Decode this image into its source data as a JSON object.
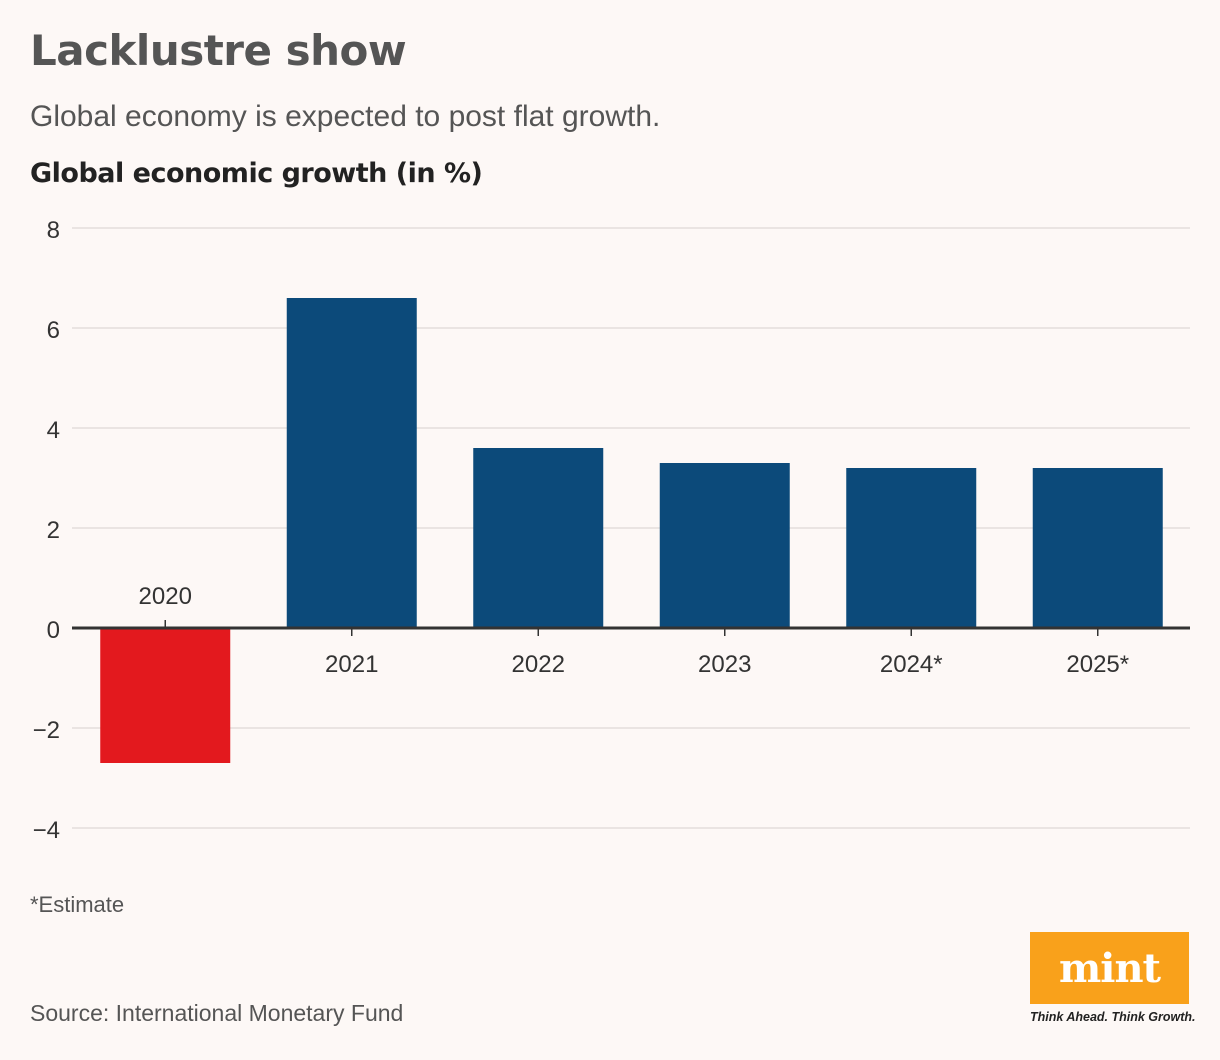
{
  "header": {
    "title": "Lacklustre show",
    "subtitle": "Global economy is expected to post flat growth."
  },
  "footer": {
    "note": "*Estimate",
    "source": "Source: International Monetary Fund"
  },
  "logo": {
    "word": "mint",
    "tagline": "Think Ahead. Think Growth.",
    "color": "#f9a11b"
  },
  "chart_data": {
    "type": "bar",
    "title": "",
    "ylabel": "Global economic growth (in %)",
    "xlabel": "",
    "categories": [
      "2020",
      "2021",
      "2022",
      "2023",
      "2024*",
      "2025*"
    ],
    "values": [
      -2.7,
      6.6,
      3.6,
      3.3,
      3.2,
      3.2
    ],
    "ylim": [
      -4,
      8
    ],
    "yticks": [
      8,
      6,
      4,
      2,
      0,
      -2,
      -4
    ],
    "ytick_labels": [
      "8",
      "6",
      "4",
      "2",
      "0",
      "−2",
      "−4"
    ],
    "grid": true,
    "colors": {
      "positive": "#0c4a7a",
      "negative": "#e3191e",
      "axis": "#333333",
      "grid": "#e3dedc"
    }
  }
}
